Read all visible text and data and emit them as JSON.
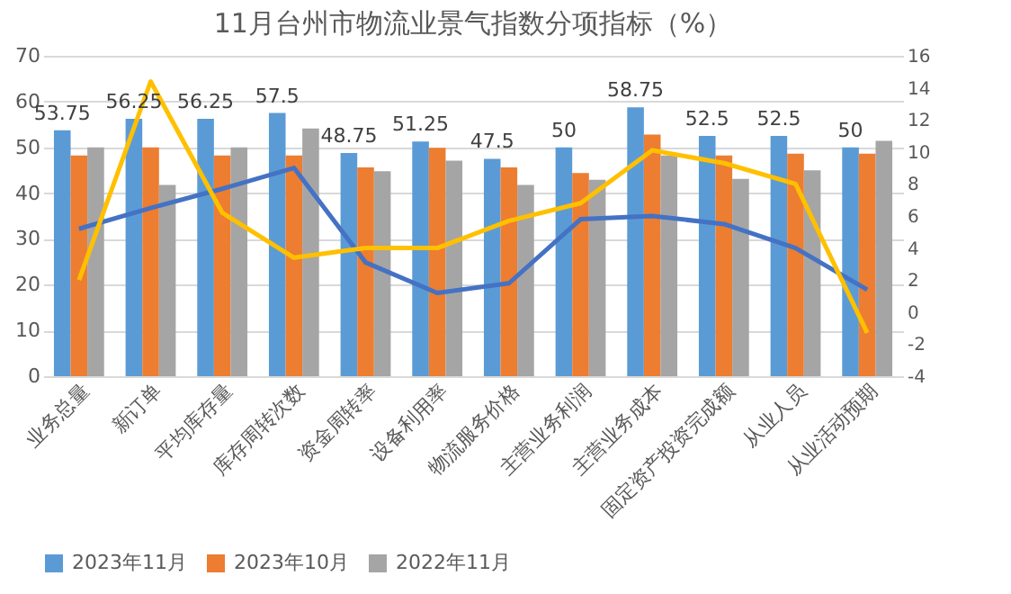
{
  "chart_data": {
    "type": "bar",
    "title": "11月台州市物流业景气指数分项指标（%）",
    "categories": [
      "业务总量",
      "新订单",
      "平均库存量",
      "库存周转次数",
      "资金周转率",
      "设备利用率",
      "物流服务价格",
      "主营业务利润",
      "主营业务成本",
      "固定资产投资完成额",
      "从业人员",
      "从业活动预期"
    ],
    "series": [
      {
        "name": "2023年11月",
        "color": "#5b9bd5",
        "values": [
          53.75,
          56.25,
          56.25,
          57.5,
          48.75,
          51.25,
          47.5,
          50,
          58.75,
          52.5,
          52.5,
          50
        ],
        "value_labels": [
          "53.75",
          "56.25",
          "56.25",
          "57.5",
          "48.75",
          "51.25",
          "47.5",
          "50",
          "58.75",
          "52.5",
          "52.5",
          "50"
        ]
      },
      {
        "name": "2023年10月",
        "color": "#ed7d31",
        "values": [
          48.2,
          50,
          48.2,
          48.2,
          45.6,
          49.9,
          45.6,
          44.4,
          52.8,
          48.2,
          48.6,
          48.6
        ]
      },
      {
        "name": "2022年11月",
        "color": "#a5a5a5",
        "values": [
          50,
          41.8,
          50,
          54.1,
          44.8,
          47.1,
          41.8,
          42.9,
          48.2,
          43.1,
          45,
          51.4
        ]
      },
      {
        "type": "line",
        "axis": "y2",
        "color": "#4472c4",
        "values": [
          5.2,
          6.5,
          7.7,
          9,
          3.1,
          1.2,
          1.8,
          5.8,
          6,
          5.5,
          4,
          1.4
        ]
      },
      {
        "type": "line",
        "axis": "y2",
        "color": "#ffc000",
        "values": [
          2,
          14.4,
          6.2,
          3.4,
          4,
          4,
          5.7,
          6.8,
          10.1,
          9.3,
          8,
          -1.3
        ]
      }
    ],
    "ylim": [
      0,
      70
    ],
    "yticks": [
      0,
      10,
      20,
      30,
      40,
      50,
      60,
      70
    ],
    "y2lim": [
      -4,
      16
    ],
    "y2ticks": [
      -4,
      -2,
      0,
      2,
      4,
      6,
      8,
      10,
      12,
      14,
      16
    ],
    "grid": "y",
    "legend": "bottom"
  }
}
